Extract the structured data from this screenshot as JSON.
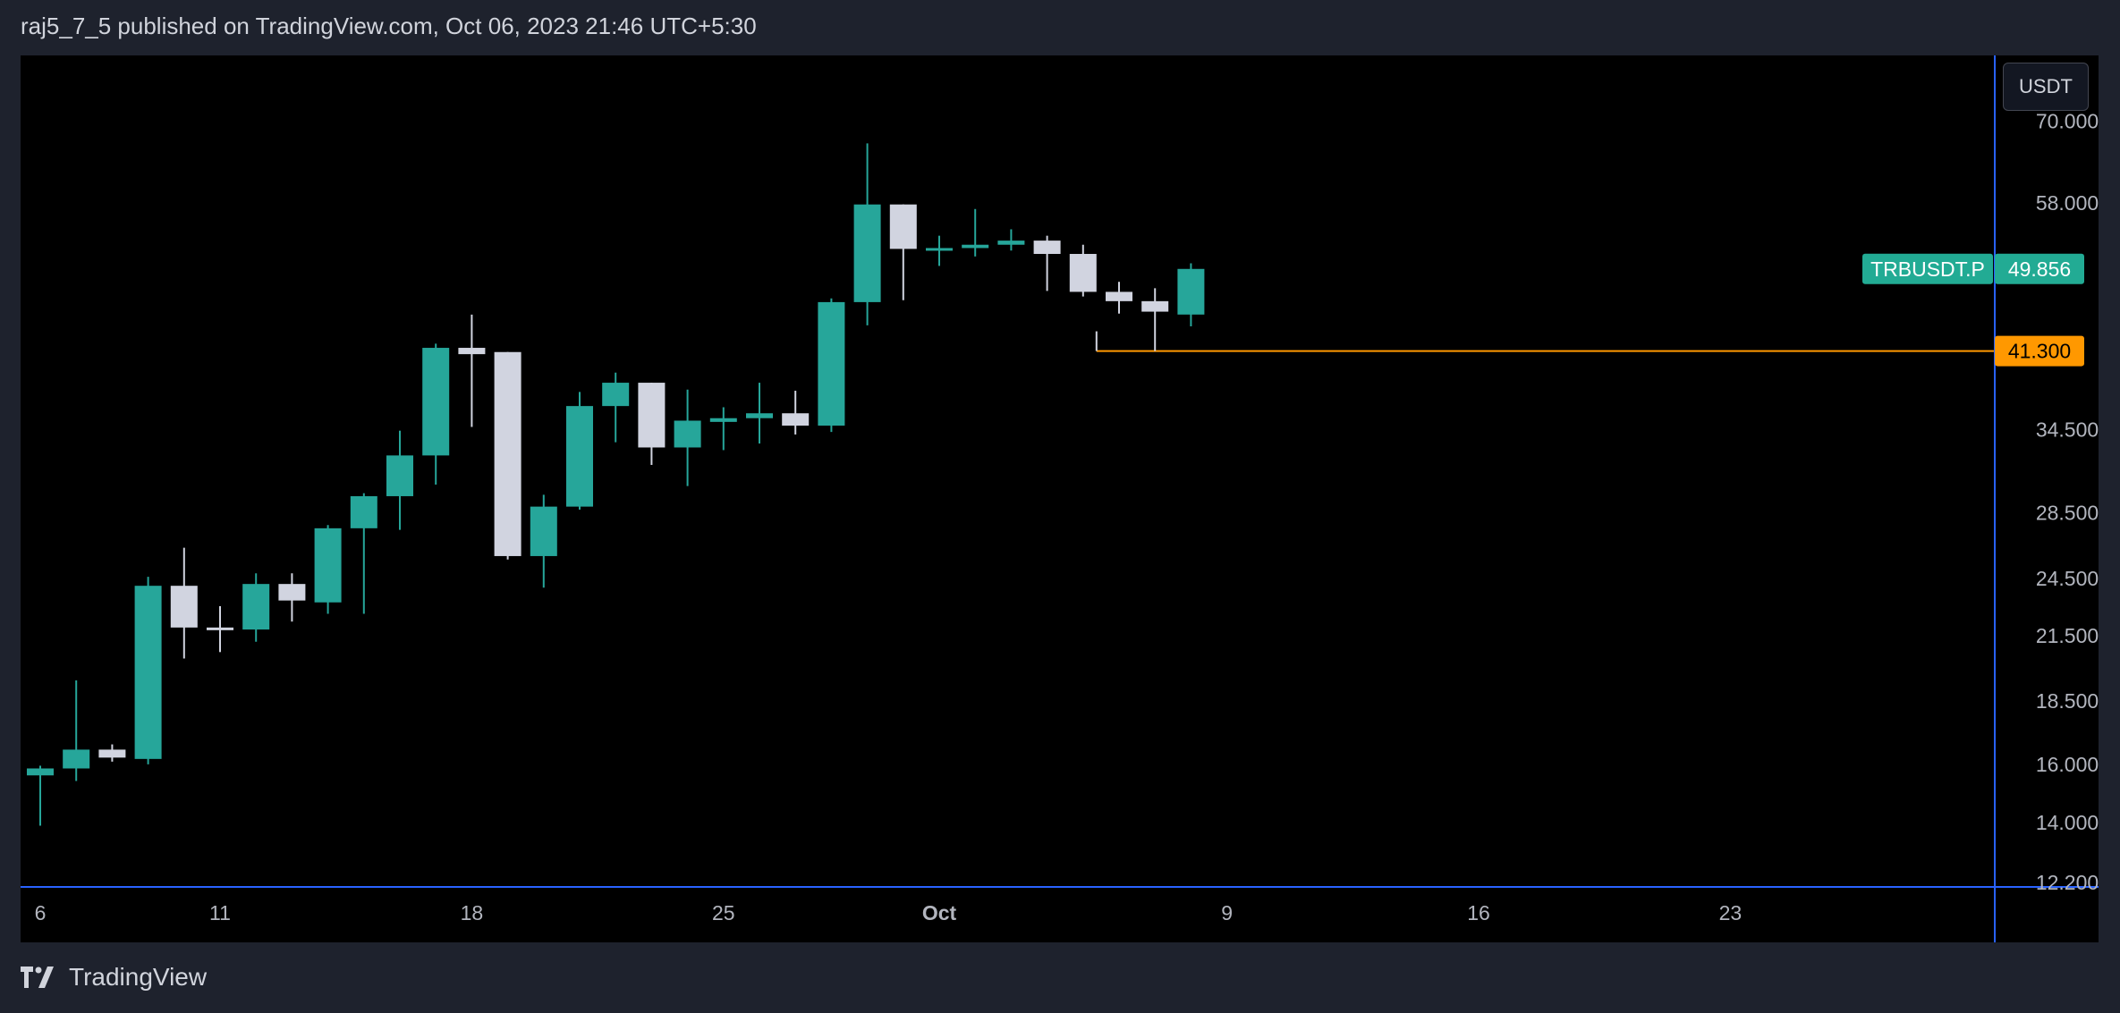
{
  "header": {
    "publish_line": "raj5_7_5 published on TradingView.com, Oct 06, 2023 21:46 UTC+5:30"
  },
  "footer": {
    "brand": "TradingView"
  },
  "price_scale": {
    "currency": "USDT"
  },
  "colors": {
    "up": "#26a69a",
    "down": "#d1d4e0",
    "wick_up": "#26a69a",
    "wick_down": "#d1d4e0",
    "axis_line": "#2962ff",
    "axis_text": "#b2b5be",
    "level_line": "#ff9800",
    "symbol_tag": "#22ab94"
  },
  "chart_data": {
    "type": "candlestick",
    "title": "",
    "symbol": "TRBUSDT.P",
    "scale": "log",
    "y_ticks": [
      "70.000",
      "58.000",
      "34.500",
      "28.500",
      "24.500",
      "21.500",
      "18.500",
      "16.000",
      "14.000",
      "12.200"
    ],
    "y_tick_values": [
      70,
      58,
      34.5,
      28.5,
      24.5,
      21.5,
      18.5,
      16,
      14,
      12.2
    ],
    "x_ticks": [
      "6",
      "11",
      "18",
      "25",
      "Oct",
      "9",
      "16",
      "23"
    ],
    "x_tick_dates": [
      "2023-09-06",
      "2023-09-11",
      "2023-09-18",
      "2023-09-25",
      "2023-10-01",
      "2023-10-09",
      "2023-10-16",
      "2023-10-23"
    ],
    "last_price": 49.856,
    "last_price_label": "49.856",
    "level": 41.3,
    "level_label": "41.300",
    "level_start_date": "2023-10-05",
    "candles": [
      {
        "date": "2023-09-06",
        "o": 15.6,
        "h": 15.95,
        "l": 13.9,
        "c": 15.85
      },
      {
        "date": "2023-09-07",
        "o": 15.85,
        "h": 19.4,
        "l": 15.4,
        "c": 16.55
      },
      {
        "date": "2023-09-08",
        "o": 16.55,
        "h": 16.75,
        "l": 16.1,
        "c": 16.25
      },
      {
        "date": "2023-09-09",
        "o": 16.2,
        "h": 24.6,
        "l": 16.0,
        "c": 24.1
      },
      {
        "date": "2023-09-10",
        "o": 24.1,
        "h": 26.3,
        "l": 20.4,
        "c": 21.9
      },
      {
        "date": "2023-09-11",
        "o": 21.9,
        "h": 23.0,
        "l": 20.7,
        "c": 21.85
      },
      {
        "date": "2023-09-12",
        "o": 21.8,
        "h": 24.8,
        "l": 21.2,
        "c": 24.2
      },
      {
        "date": "2023-09-13",
        "o": 24.2,
        "h": 24.8,
        "l": 22.2,
        "c": 23.3
      },
      {
        "date": "2023-09-14",
        "o": 23.2,
        "h": 27.7,
        "l": 22.6,
        "c": 27.5
      },
      {
        "date": "2023-09-15",
        "o": 27.5,
        "h": 29.8,
        "l": 22.6,
        "c": 29.6
      },
      {
        "date": "2023-09-16",
        "o": 29.6,
        "h": 34.4,
        "l": 27.4,
        "c": 32.5
      },
      {
        "date": "2023-09-17",
        "o": 32.5,
        "h": 42.0,
        "l": 30.4,
        "c": 41.6
      },
      {
        "date": "2023-09-18",
        "o": 41.6,
        "h": 44.9,
        "l": 34.7,
        "c": 41.0
      },
      {
        "date": "2023-09-19",
        "o": 41.2,
        "h": 41.2,
        "l": 25.6,
        "c": 25.8
      },
      {
        "date": "2023-09-20",
        "o": 25.8,
        "h": 29.7,
        "l": 24.0,
        "c": 28.9
      },
      {
        "date": "2023-09-21",
        "o": 28.9,
        "h": 37.6,
        "l": 28.7,
        "c": 36.4
      },
      {
        "date": "2023-09-22",
        "o": 36.4,
        "h": 39.3,
        "l": 33.5,
        "c": 38.4
      },
      {
        "date": "2023-09-23",
        "o": 38.4,
        "h": 38.4,
        "l": 31.8,
        "c": 33.1
      },
      {
        "date": "2023-09-24",
        "o": 33.1,
        "h": 37.8,
        "l": 30.3,
        "c": 35.2
      },
      {
        "date": "2023-09-25",
        "o": 35.1,
        "h": 36.3,
        "l": 32.9,
        "c": 35.4
      },
      {
        "date": "2023-09-26",
        "o": 35.4,
        "h": 38.4,
        "l": 33.4,
        "c": 35.8
      },
      {
        "date": "2023-09-27",
        "o": 35.8,
        "h": 37.7,
        "l": 34.1,
        "c": 34.8
      },
      {
        "date": "2023-09-28",
        "o": 34.8,
        "h": 46.6,
        "l": 34.3,
        "c": 46.2
      },
      {
        "date": "2023-09-29",
        "o": 46.2,
        "h": 66.5,
        "l": 43.8,
        "c": 57.8
      },
      {
        "date": "2023-09-30",
        "o": 57.8,
        "h": 57.8,
        "l": 46.4,
        "c": 52.2
      },
      {
        "date": "2023-10-01",
        "o": 52.2,
        "h": 53.8,
        "l": 50.2,
        "c": 52.3
      },
      {
        "date": "2023-10-02",
        "o": 52.3,
        "h": 57.2,
        "l": 51.3,
        "c": 52.7
      },
      {
        "date": "2023-10-03",
        "o": 52.7,
        "h": 54.6,
        "l": 52.0,
        "c": 53.2
      },
      {
        "date": "2023-10-04",
        "o": 53.2,
        "h": 53.8,
        "l": 47.4,
        "c": 51.6
      },
      {
        "date": "2023-10-05",
        "o": 51.6,
        "h": 52.7,
        "l": 46.8,
        "c": 47.3
      },
      {
        "date": "2023-10-06",
        "o": 47.3,
        "h": 48.4,
        "l": 45.0,
        "c": 46.3
      },
      {
        "date": "2023-10-07",
        "o": 46.3,
        "h": 47.7,
        "l": 41.3,
        "c": 45.2
      },
      {
        "date": "2023-10-08",
        "o": 44.9,
        "h": 50.5,
        "l": 43.7,
        "c": 49.856
      }
    ]
  }
}
